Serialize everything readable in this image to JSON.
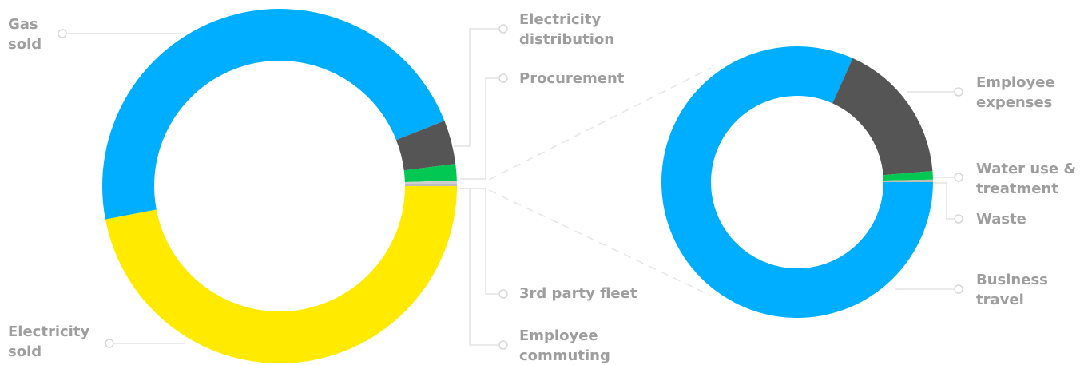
{
  "chart_data": [
    {
      "type": "donut",
      "categories": [
        "Electricity sold",
        "Gas sold",
        "Electricity distribution",
        "Procurement",
        "3rd party fleet",
        "Employee commuting"
      ],
      "values": [
        47,
        47,
        4,
        1.5,
        0.3,
        0.2
      ],
      "colors": [
        "#ffea00",
        "#00aeff",
        "#555555",
        "#00c853",
        "#cfcfcf",
        "#bdbdbd"
      ]
    },
    {
      "type": "donut",
      "categories": [
        "Business travel",
        "Employee expenses",
        "Water use & treatment",
        "Waste"
      ],
      "values": [
        81.7,
        17,
        1,
        0.3
      ],
      "colors": [
        "#00aeff",
        "#555555",
        "#00c853",
        "#bdbdbd"
      ]
    }
  ]
}
